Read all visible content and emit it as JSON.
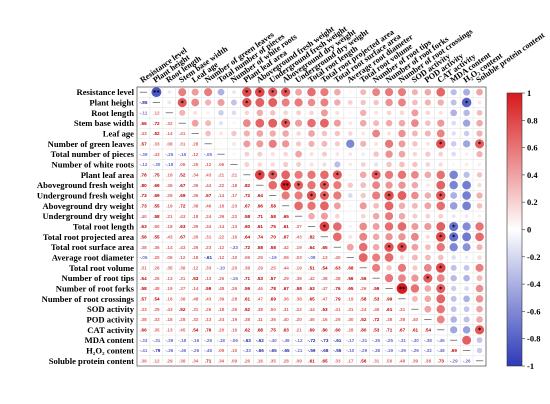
{
  "chart_data": {
    "type": "heatmap",
    "title": "",
    "variables": [
      "Resistance level",
      "Plant height",
      "Root length",
      "Stem base width",
      "Leaf age",
      "Number of green leaves",
      "Total number of pieces",
      "Number of white roots",
      "Plant leaf area",
      "Aboveground fresh weight",
      "Underground fresh weight",
      "Aboveground dry weight",
      "Underground dry weight",
      "Total root length",
      "Total root projected area",
      "Total root surface area",
      "Average root diameter",
      "Total root volume",
      "Number of root tips",
      "Number of root forks",
      "Number of root crossings",
      "SOD activity",
      "POD activity",
      "CAT activity",
      "MDA content",
      "H₂O₂ content",
      "Soluble protein content"
    ],
    "lower_triangle_values": [
      [],
      [
        -0.85
      ],
      [
        -0.11,
        0.12
      ],
      [
        0.56,
        0.72,
        0.32
      ],
      [
        0.43,
        0.52,
        0.14,
        0.41
      ],
      [
        0.57,
        0.33,
        0.08,
        0.31,
        0.28
      ],
      [
        -0.39,
        0.43,
        -0.25,
        -0.15,
        0.12,
        -0.05
      ],
      [
        -0.12,
        -0.3,
        -0.18,
        0.06,
        0.25,
        0.12,
        0.06
      ],
      [
        0.78,
        0.75,
        0.18,
        0.52,
        0.34,
        0.43,
        0.21,
        0.21
      ],
      [
        0.8,
        0.69,
        0.36,
        0.67,
        0.39,
        0.44,
        0.22,
        0.18,
        0.82
      ],
      [
        0.73,
        0.69,
        0.26,
        0.69,
        0.36,
        0.57,
        0.14,
        0.17,
        0.72,
        0.64
      ],
      [
        0.73,
        0.55,
        0.19,
        0.72,
        0.38,
        0.46,
        0.18,
        0.23,
        0.67,
        0.96,
        0.58
      ],
      [
        0.4,
        0.58,
        0.21,
        0.43,
        0.18,
        0.24,
        0.39,
        0.22,
        0.58,
        0.71,
        0.58,
        0.65
      ],
      [
        0.63,
        0.5,
        0.18,
        0.63,
        0.39,
        0.34,
        0.14,
        0.13,
        0.6,
        0.61,
        0.75,
        0.61,
        0.37
      ],
      [
        0.58,
        0.55,
        0.43,
        0.67,
        0.26,
        0.31,
        0.22,
        0.16,
        0.64,
        0.74,
        0.7,
        0.67,
        0.43,
        0.82
      ],
      [
        0.38,
        0.36,
        0.14,
        0.43,
        0.26,
        0.23,
        0.12,
        -0.33,
        0.72,
        0.58,
        0.58,
        0.42,
        0.19,
        0.64,
        0.65
      ],
      [
        -0.05,
        0.2,
        0.06,
        0.12,
        0.18,
        -0.61,
        0.12,
        0.1,
        0.06,
        0.25,
        -0.19,
        0.06,
        0.03,
        -0.08,
        0.13,
        0.4
      ],
      [
        0.31,
        0.26,
        0.35,
        0.38,
        0.12,
        0.33,
        -0.1,
        0.2,
        0.38,
        0.29,
        0.25,
        0.44,
        0.19,
        0.51,
        0.54,
        0.63,
        0.68,
        0.33
      ],
      [
        0.54,
        0.26,
        0.13,
        0.31,
        0.53,
        0.13,
        0.26,
        -0.15,
        0.71,
        0.53,
        0.57,
        0.29,
        0.38,
        0.42,
        0.38,
        0.38,
        0.56,
        0.56,
        0.68
      ],
      [
        0.58,
        0.48,
        0.19,
        0.37,
        0.14,
        0.59,
        0.48,
        0.26,
        0.59,
        0.46,
        0.78,
        0.67,
        0.58,
        0.63,
        0.47,
        0.76,
        0.65,
        0.26,
        0.59,
        0.82
      ],
      [
        0.57,
        0.54,
        0.18,
        0.38,
        0.48,
        0.43,
        0.39,
        0.28,
        0.61,
        0.47,
        0.69,
        0.36,
        0.38,
        0.65,
        0.47,
        0.79,
        0.19,
        0.58,
        0.53,
        0.99,
        0.82
      ],
      [
        0.33,
        0.29,
        0.43,
        0.52,
        0.31,
        0.26,
        0.18,
        0.26,
        0.52,
        0.38,
        0.5,
        0.31,
        0.22,
        0.44,
        0.53,
        0.41,
        0.31,
        0.24,
        0.46,
        0.61,
        0.31,
        0.49
      ],
      [
        0.38,
        0.33,
        0.18,
        0.28,
        0.32,
        0.13,
        0.24,
        0.19,
        0.38,
        0.11,
        0.36,
        0.4,
        0.2,
        0.45,
        0.16,
        0.29,
        0.3,
        0.52,
        0.72,
        0.38,
        0.38,
        0.4,
        0.31
      ],
      [
        0.66,
        0.35,
        0.13,
        0.45,
        0.54,
        0.76,
        0.2,
        0.16,
        0.62,
        0.68,
        0.75,
        0.63,
        0.21,
        0.69,
        0.8,
        0.6,
        0.28,
        0.8,
        0.53,
        0.71,
        0.67,
        0.61,
        0.54
      ],
      [
        -0.33,
        -0.31,
        -0.39,
        -0.18,
        -0.16,
        -0.26,
        -0.18,
        -0.06,
        -0.63,
        -0.62,
        -0.4,
        -0.49,
        -0.12,
        -0.72,
        -0.73,
        -0.61,
        -0.17,
        -0.31,
        -0.35,
        -0.25,
        -0.31,
        -0.3,
        -0.38,
        -0.45
      ],
      [
        -0.41,
        -0.79,
        -0.36,
        -0.46,
        -0.26,
        -0.46,
        0.09,
        0.1,
        -0.33,
        -0.66,
        -0.65,
        -0.65,
        -0.11,
        -0.59,
        -0.68,
        -0.55,
        -0.1,
        -0.29,
        -0.38,
        -0.19,
        -0.39,
        -0.29,
        -0.32,
        -0.48,
        0.69
      ],
      [
        0.39,
        0.12,
        0.29,
        0.38,
        0.34,
        0.71,
        0.34,
        0.09,
        0.26,
        0.16,
        0.35,
        0.28,
        0.09,
        0.61,
        0.65,
        0.33,
        0.17,
        0.56,
        0.31,
        0.5,
        0.48,
        0.39,
        0.38,
        0.73,
        -0.29,
        -0.26
      ]
    ],
    "value_range": [
      -1,
      1
    ],
    "colorbar_ticks": [
      "1",
      "0.8",
      "0.6",
      "0.4",
      "0.2",
      "0",
      "-0.2",
      "-0.4",
      "-0.6",
      "-0.8",
      "-1"
    ],
    "colors": {
      "positive": "#d7191c",
      "neutral": "#ffffff",
      "negative": "#2c3ab8"
    },
    "significance_marker": "*",
    "legend": "right"
  }
}
